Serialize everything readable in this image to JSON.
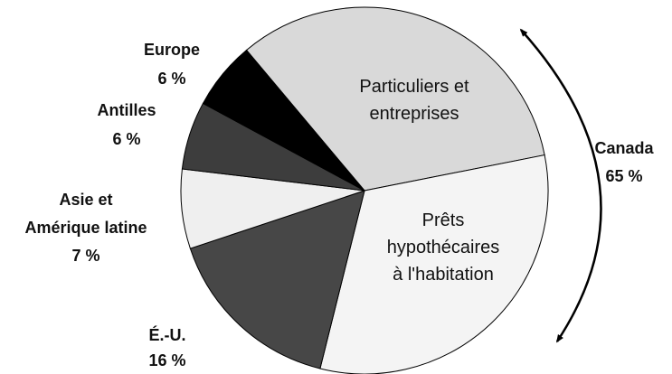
{
  "chart_data": {
    "type": "pie",
    "start_angle": 320,
    "categories": [
      "Particuliers et\nentreprises",
      "Prêts\nhypothécaires\nà l'habitation",
      "É.-U.",
      "Asie et\nAmérique latine",
      "Antilles",
      "Europe"
    ],
    "values": [
      33,
      32,
      16,
      7,
      6,
      6
    ],
    "value_labels": [
      null,
      null,
      "16 %",
      "7 %",
      "6 %",
      "6 %"
    ],
    "colors": [
      "#d9d9d9",
      "#f4f4f4",
      "#474747",
      "#efefef",
      "#3d3d3d",
      "#000000"
    ],
    "annotations": [
      {
        "label": "Canada",
        "value": 65,
        "value_label": "65 %"
      }
    ]
  }
}
